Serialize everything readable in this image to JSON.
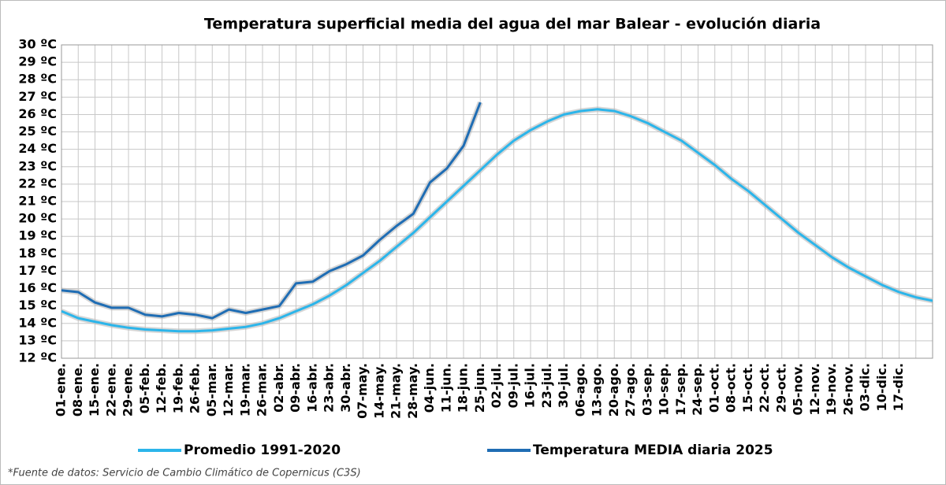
{
  "chart_data": {
    "type": "line",
    "title": "Temperatura superficial media del agua del mar Balear - evolución diaria",
    "source": "*Fuente de datos: Servicio de Cambio Climático de Copernicus (C3S)",
    "categories": [
      "01-ene.",
      "08-ene.",
      "15-ene.",
      "22-ene.",
      "29-ene.",
      "05-feb.",
      "12-feb.",
      "19-feb.",
      "26-feb.",
      "05-mar.",
      "12-mar.",
      "19-mar.",
      "26-mar.",
      "02-abr.",
      "09-abr.",
      "16-abr.",
      "23-abr.",
      "30-abr.",
      "07-may.",
      "14-may.",
      "21-may.",
      "28-may.",
      "04-jun.",
      "11-jun.",
      "18-jun.",
      "25-jun.",
      "02-jul.",
      "09-jul.",
      "16-jul.",
      "23-jul.",
      "30-jul.",
      "06-ago.",
      "13-ago.",
      "20-ago.",
      "27-ago.",
      "03-sep.",
      "10-sep.",
      "17-sep.",
      "24-sep.",
      "01-oct.",
      "08-oct.",
      "15-oct.",
      "22-oct.",
      "29-oct.",
      "05-nov.",
      "12-nov.",
      "19-nov.",
      "26-nov.",
      "03-dic.",
      "10-dic.",
      "17-dic.",
      null,
      null
    ],
    "series": [
      {
        "name": "Promedio 1991-2020",
        "color": "#2cb5ea",
        "values": [
          14.7,
          14.3,
          14.1,
          13.9,
          13.75,
          13.65,
          13.6,
          13.55,
          13.55,
          13.6,
          13.7,
          13.8,
          14.0,
          14.3,
          14.7,
          15.1,
          15.6,
          16.2,
          16.9,
          17.6,
          18.4,
          19.2,
          20.1,
          21.0,
          21.9,
          22.8,
          23.7,
          24.5,
          25.1,
          25.6,
          26.0,
          26.2,
          26.3,
          26.2,
          25.9,
          25.5,
          25.0,
          24.5,
          23.8,
          23.1,
          22.3,
          21.6,
          20.8,
          20.0,
          19.2,
          18.5,
          17.8,
          17.2,
          16.7,
          16.2,
          15.8,
          15.5,
          15.3
        ]
      },
      {
        "name": "Temperatura MEDIA diaria 2025",
        "color": "#1f6db4",
        "values": [
          15.9,
          15.8,
          15.2,
          14.9,
          14.9,
          14.5,
          14.4,
          14.6,
          14.5,
          14.3,
          14.8,
          14.6,
          14.8,
          15.0,
          16.3,
          16.4,
          17.0,
          17.4,
          17.9,
          18.8,
          19.6,
          20.3,
          22.1,
          22.9,
          24.2,
          26.7,
          null,
          null,
          null,
          null,
          null,
          null,
          null,
          null,
          null,
          null,
          null,
          null,
          null,
          null,
          null,
          null,
          null,
          null,
          null,
          null,
          null,
          null,
          null,
          null,
          null,
          null,
          null
        ]
      }
    ],
    "ylim": [
      12,
      30
    ],
    "yticks": [
      {
        "value": 12,
        "label": "12 ºC"
      },
      {
        "value": 13,
        "label": "13 ºC"
      },
      {
        "value": 14,
        "label": "14 ºC"
      },
      {
        "value": 15,
        "label": "15 ºC"
      },
      {
        "value": 16,
        "label": "16 ºC"
      },
      {
        "value": 17,
        "label": "17 ºC"
      },
      {
        "value": 18,
        "label": "18 ºC"
      },
      {
        "value": 19,
        "label": "19 ºC"
      },
      {
        "value": 20,
        "label": "20 ºC"
      },
      {
        "value": 21,
        "label": "21 ºC"
      },
      {
        "value": 22,
        "label": "22 ºC"
      },
      {
        "value": 23,
        "label": "23 ºC"
      },
      {
        "value": 24,
        "label": "24 ºC"
      },
      {
        "value": 25,
        "label": "25 ºC"
      },
      {
        "value": 26,
        "label": "26 ºC"
      },
      {
        "value": 27,
        "label": "27 ºC"
      },
      {
        "value": 28,
        "label": "28 ºC"
      },
      {
        "value": 29,
        "label": "29 ºC"
      },
      {
        "value": 30,
        "label": "30 ºC"
      }
    ],
    "grid": true
  }
}
